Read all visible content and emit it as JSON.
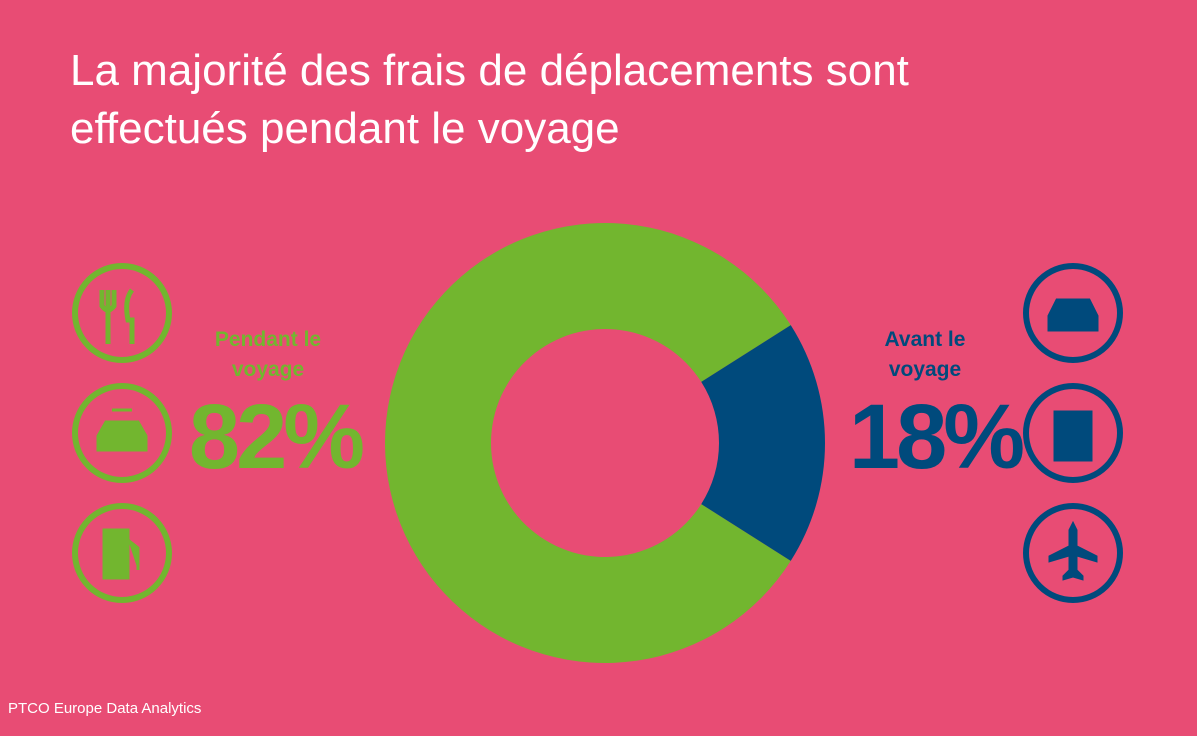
{
  "chart_data": {
    "type": "donut",
    "title": "La majorité des frais de déplacements sont effectués pendant le voyage",
    "categories": [
      "Pendant le voyage",
      "Avant le voyage"
    ],
    "values": [
      82,
      18
    ],
    "value_labels": [
      "82%",
      "18%"
    ],
    "colors": [
      "#72b62f",
      "#004a7c"
    ],
    "source": "PTCO Europe Data Analytics"
  }
}
